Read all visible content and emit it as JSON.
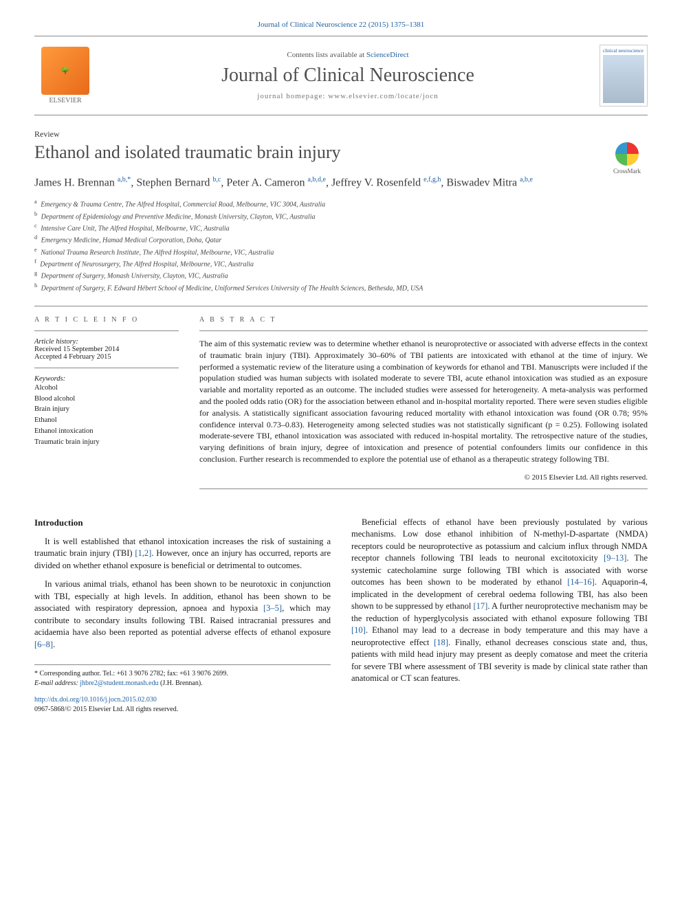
{
  "journal_ref": "Journal of Clinical Neuroscience 22 (2015) 1375–1381",
  "header": {
    "contents_line_pre": "Contents lists available at ",
    "contents_link": "ScienceDirect",
    "journal_name": "Journal of Clinical Neuroscience",
    "homepage_line": "journal homepage: www.elsevier.com/locate/jocn",
    "publisher": "ELSEVIER",
    "cover_text": "clinical neuroscience"
  },
  "article_type": "Review",
  "title": "Ethanol and isolated traumatic brain injury",
  "crossmark": "CrossMark",
  "authors_html": "James H. Brennan <sup>a,b,*</sup>, Stephen Bernard <sup>b,c</sup>, Peter A. Cameron <sup>a,b,d,e</sup>, Jeffrey V. Rosenfeld <sup>e,f,g,h</sup>, Biswadev Mitra <sup>a,b,e</sup>",
  "affiliations": [
    {
      "sup": "a",
      "text": "Emergency & Trauma Centre, The Alfred Hospital, Commercial Road, Melbourne, VIC 3004, Australia"
    },
    {
      "sup": "b",
      "text": "Department of Epidemiology and Preventive Medicine, Monash University, Clayton, VIC, Australia"
    },
    {
      "sup": "c",
      "text": "Intensive Care Unit, The Alfred Hospital, Melbourne, VIC, Australia"
    },
    {
      "sup": "d",
      "text": "Emergency Medicine, Hamad Medical Corporation, Doha, Qatar"
    },
    {
      "sup": "e",
      "text": "National Trauma Research Institute, The Alfred Hospital, Melbourne, VIC, Australia"
    },
    {
      "sup": "f",
      "text": "Department of Neurosurgery, The Alfred Hospital, Melbourne, VIC, Australia"
    },
    {
      "sup": "g",
      "text": "Department of Surgery, Monash University, Clayton, VIC, Australia"
    },
    {
      "sup": "h",
      "text": "Department of Surgery, F. Edward Hébert School of Medicine, Uniformed Services University of The Health Sciences, Bethesda, MD, USA"
    }
  ],
  "article_info": {
    "head": "A R T I C L E   I N F O",
    "history_label": "Article history:",
    "received": "Received 15 September 2014",
    "accepted": "Accepted 4 February 2015",
    "keywords_label": "Keywords:",
    "keywords": [
      "Alcohol",
      "Blood alcohol",
      "Brain injury",
      "Ethanol",
      "Ethanol intoxication",
      "Traumatic brain injury"
    ]
  },
  "abstract": {
    "head": "A B S T R A C T",
    "text": "The aim of this systematic review was to determine whether ethanol is neuroprotective or associated with adverse effects in the context of traumatic brain injury (TBI). Approximately 30–60% of TBI patients are intoxicated with ethanol at the time of injury. We performed a systematic review of the literature using a combination of keywords for ethanol and TBI. Manuscripts were included if the population studied was human subjects with isolated moderate to severe TBI, acute ethanol intoxication was studied as an exposure variable and mortality reported as an outcome. The included studies were assessed for heterogeneity. A meta-analysis was performed and the pooled odds ratio (OR) for the association between ethanol and in-hospital mortality reported. There were seven studies eligible for analysis. A statistically significant association favouring reduced mortality with ethanol intoxication was found (OR 0.78; 95% confidence interval 0.73–0.83). Heterogeneity among selected studies was not statistically significant (p = 0.25). Following isolated moderate-severe TBI, ethanol intoxication was associated with reduced in-hospital mortality. The retrospective nature of the studies, varying definitions of brain injury, degree of intoxication and presence of potential confounders limits our confidence in this conclusion. Further research is recommended to explore the potential use of ethanol as a therapeutic strategy following TBI.",
    "copyright": "© 2015 Elsevier Ltd. All rights reserved."
  },
  "body": {
    "section_head": "Introduction",
    "left": [
      "It is well established that ethanol intoxication increases the risk of sustaining a traumatic brain injury (TBI) [1,2]. However, once an injury has occurred, reports are divided on whether ethanol exposure is beneficial or detrimental to outcomes.",
      "In various animal trials, ethanol has been shown to be neurotoxic in conjunction with TBI, especially at high levels. In addition, ethanol has been shown to be associated with respiratory depression, apnoea and hypoxia [3–5], which may contribute to secondary insults following TBI. Raised intracranial pressures and acidaemia have also been reported as potential adverse effects of ethanol exposure [6–8]."
    ],
    "right": [
      "Beneficial effects of ethanol have been previously postulated by various mechanisms. Low dose ethanol inhibition of N-methyl-D-aspartate (NMDA) receptors could be neuroprotective as potassium and calcium influx through NMDA receptor channels following TBI leads to neuronal excitotoxicity [9–13]. The systemic catecholamine surge following TBI which is associated with worse outcomes has been shown to be moderated by ethanol [14–16]. Aquaporin-4, implicated in the development of cerebral oedema following TBI, has also been shown to be suppressed by ethanol [17]. A further neuroprotective mechanism may be the reduction of hyperglycolysis associated with ethanol exposure following TBI [10]. Ethanol may lead to a decrease in body temperature and this may have a neuroprotective effect [18]. Finally, ethanol decreases conscious state and, thus, patients with mild head injury may present as deeply comatose and meet the criteria for severe TBI where assessment of TBI severity is made by clinical state rather than anatomical or CT scan features."
    ]
  },
  "footer": {
    "corresp": "* Corresponding author. Tel.: +61 3 9076 2782; fax: +61 3 9076 2699.",
    "email_label": "E-mail address: ",
    "email": "jhbre2@student.monash.edu",
    "email_name": " (J.H. Brennan).",
    "doi": "http://dx.doi.org/10.1016/j.jocn.2015.02.030",
    "issn_line": "0967-5868/© 2015 Elsevier Ltd. All rights reserved."
  },
  "ref_markers": {
    "l1": "[1,2]",
    "l2": "[3–5]",
    "l3": "[6–8]",
    "r1": "[9–13]",
    "r2": "[14–16]",
    "r3": "[17]",
    "r4": "[10]",
    "r5": "[18]"
  },
  "colors": {
    "link": "#2060a0",
    "text": "#1a1a1a",
    "muted": "#555",
    "border": "#888"
  }
}
